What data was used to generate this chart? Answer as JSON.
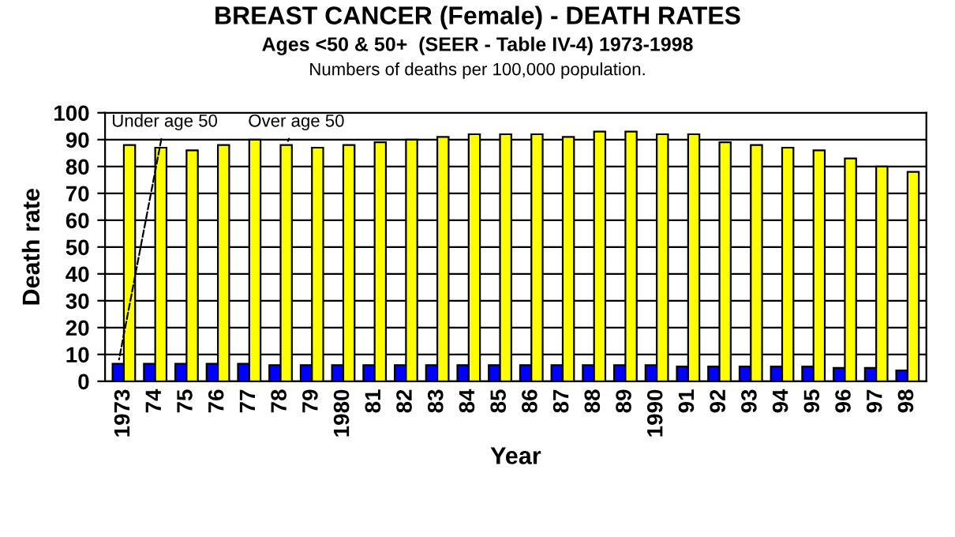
{
  "chart_data": {
    "type": "bar",
    "title": "BREAST CANCER (Female) - DEATH RATES",
    "subtitle": "Ages <50 & 50+  (SEER - Table IV-4) 1973-1998",
    "annotations": [
      "Numbers of deaths per 100,000 population."
    ],
    "xlabel": "Year",
    "ylabel": "Death rate",
    "categories": [
      "1973",
      "74",
      "75",
      "76",
      "77",
      "78",
      "79",
      "1980",
      "81",
      "82",
      "83",
      "84",
      "85",
      "86",
      "87",
      "88",
      "89",
      "1990",
      "91",
      "92",
      "93",
      "94",
      "95",
      "96",
      "97",
      "98"
    ],
    "series": [
      {
        "name": "Under age 50",
        "color": "#0000ff",
        "values": [
          6.5,
          6.5,
          6.5,
          6.5,
          6.5,
          6,
          6,
          6,
          6,
          6,
          6,
          6,
          6,
          6,
          6,
          6,
          6,
          6,
          5.5,
          5.5,
          5.5,
          5.5,
          5.5,
          5,
          5,
          4
        ]
      },
      {
        "name": "Over age 50",
        "color": "#ffff00",
        "values": [
          88,
          87,
          86,
          88,
          90,
          88,
          87,
          88,
          89,
          90,
          91,
          92,
          92,
          92,
          91,
          93,
          93,
          92,
          92,
          89,
          88,
          87,
          86,
          83,
          80,
          78
        ]
      }
    ],
    "ylim": [
      0,
      100
    ],
    "yticks": [
      0,
      10,
      20,
      30,
      40,
      50,
      60,
      70,
      80,
      90,
      100
    ],
    "grid": "y",
    "legend": false
  }
}
